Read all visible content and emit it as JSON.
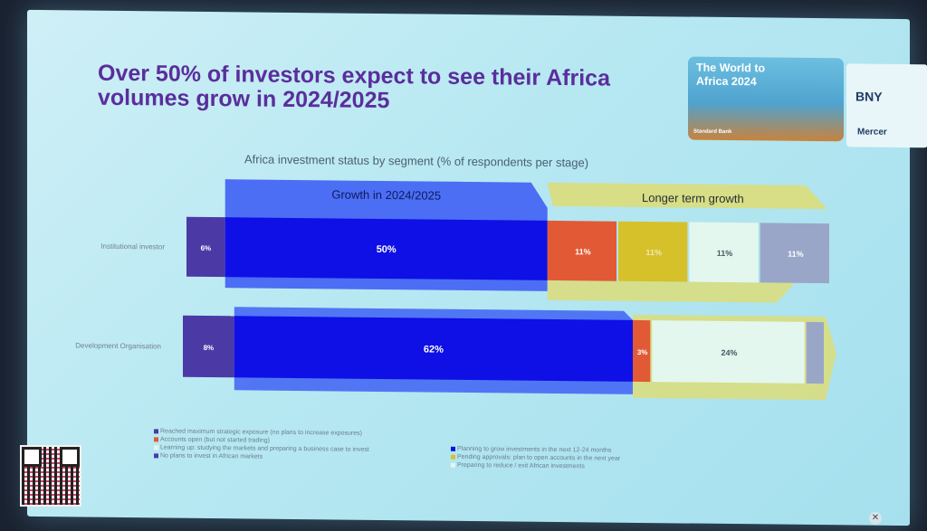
{
  "slide": {
    "title": "Over 50% of investors expect to see their Africa\nvolumes grow in 2024/2025",
    "badge_title": "The World to\nAfrica 2024",
    "badge_footer": "Standard Bank",
    "logos": [
      "BNY",
      "Mercer"
    ]
  },
  "chart_data": {
    "type": "bar",
    "stacked": true,
    "orientation": "horizontal",
    "title": "Africa investment status by segment (% of respondents per stage)",
    "categories": [
      "Institutional investor",
      "Development Organisation"
    ],
    "series": [
      {
        "name": "No plans to invest in African markets",
        "color": "#4b3aa6",
        "values": [
          6,
          8
        ]
      },
      {
        "name": "Planning to grow investments in the next 12-24 months",
        "color": "#0e10e6",
        "values": [
          50,
          62
        ]
      },
      {
        "name": "Accounts open (but not started trading)",
        "color": "#e15a35",
        "values": [
          11,
          3
        ]
      },
      {
        "name": "Pending approvals: plan to open accounts in the next year",
        "color": "#d6c12b",
        "values": [
          11,
          0
        ]
      },
      {
        "name": "Learning up: studying the markets and preparing a business case to invest",
        "color": "#e3f7ee",
        "values": [
          11,
          24
        ]
      },
      {
        "name": "Preparing to reduce / exit African investments",
        "color": "#9aa6c8",
        "values": [
          11,
          3
        ]
      }
    ],
    "data_labels": [
      [
        "6%",
        "50%",
        "11%",
        "11%",
        "11%",
        "11%"
      ],
      [
        "8%",
        "62%",
        "3%",
        "",
        "24%",
        ""
      ]
    ],
    "annotations": [
      "Growth in 2024/2025",
      "Longer term growth"
    ],
    "legend": [
      {
        "text": "Reached maximum strategic exposure (no plans to increase exposures)",
        "color": "#4b3aa6"
      },
      {
        "text": "Accounts open (but not started trading)",
        "color": "#e15a35"
      },
      {
        "text": "Learning up: studying the markets and preparing a business case to invest",
        "color": "#e3f7ee"
      },
      {
        "text": "No plans to invest in African markets",
        "color": "#4b3aa6"
      },
      {
        "text": "Planning to grow investments in the next 12-24 months",
        "color": "#0e10e6"
      },
      {
        "text": "Pending approvals: plan to open accounts in the next year",
        "color": "#d6c12b"
      },
      {
        "text": "Preparing to reduce / exit African investments",
        "color": "#9aa6c8"
      }
    ],
    "legend_placement": "bottom",
    "grid": false
  }
}
